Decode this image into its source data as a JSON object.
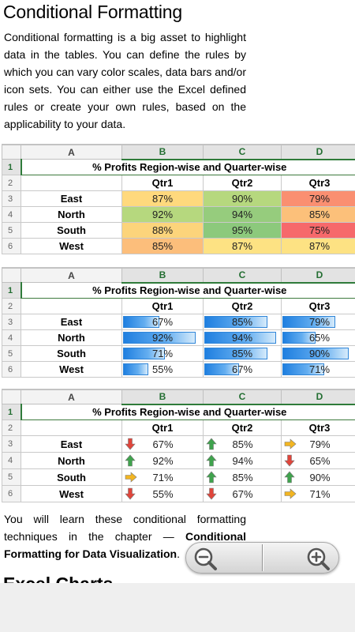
{
  "page": {
    "title": "Conditional Formatting",
    "intro": "Conditional formatting is a big asset to highlight data in the tables. You can define the rules by which you can vary color scales, data bars and/or icon sets. You can either use the Excel defined rules or create your own rules, based on the applicability to your data.",
    "outro_text": "You will learn these conditional formatting techniques in the chapter — ",
    "outro_link": "Conditional Formatting for Data Visualization",
    "outro_end": ".",
    "next_heading": "Excel Charts"
  },
  "sheet": {
    "columns": [
      "A",
      "B",
      "C",
      "D"
    ],
    "row_numbers": [
      "1",
      "2",
      "3",
      "4",
      "5",
      "6"
    ],
    "title": "% Profits Region-wise and Quarter-wise",
    "quarters": [
      "Qtr1",
      "Qtr2",
      "Qtr3"
    ],
    "regions": [
      "East",
      "North",
      "South",
      "West"
    ],
    "values": [
      [
        "87%",
        "90%",
        "79%"
      ],
      [
        "92%",
        "94%",
        "85%"
      ],
      [
        "88%",
        "95%",
        "75%"
      ],
      [
        "85%",
        "87%",
        "87%"
      ]
    ],
    "databar_values": [
      [
        "67%",
        "85%",
        "79%"
      ],
      [
        "92%",
        "94%",
        "65%"
      ],
      [
        "71%",
        "85%",
        "90%"
      ],
      [
        "55%",
        "67%",
        "71%"
      ]
    ],
    "databar_fractions": [
      [
        0.45,
        0.82,
        0.7
      ],
      [
        0.9,
        0.93,
        0.44
      ],
      [
        0.52,
        0.82,
        0.87
      ],
      [
        0.31,
        0.45,
        0.55
      ]
    ],
    "iconset_values": [
      [
        "67%",
        "85%",
        "79%"
      ],
      [
        "92%",
        "94%",
        "65%"
      ],
      [
        "71%",
        "85%",
        "90%"
      ],
      [
        "55%",
        "67%",
        "71%"
      ]
    ],
    "iconset_icons": [
      [
        "arrow-down-icon",
        "arrow-up-icon",
        "arrow-right-icon"
      ],
      [
        "arrow-up-icon",
        "arrow-up-icon",
        "arrow-down-icon"
      ],
      [
        "arrow-right-icon",
        "arrow-up-icon",
        "arrow-up-icon"
      ],
      [
        "arrow-down-icon",
        "arrow-down-icon",
        "arrow-right-icon"
      ]
    ],
    "color_scale_colors": [
      [
        "#ffd97d",
        "#b6d87e",
        "#fa8f71"
      ],
      [
        "#b6d87e",
        "#96cc7d",
        "#fcc07a"
      ],
      [
        "#fcd47b",
        "#8cc97c",
        "#f6696b"
      ],
      [
        "#fcbe7b",
        "#fde283",
        "#fde283"
      ]
    ]
  },
  "icon_colors": {
    "up": "#3fa34d",
    "down": "#e0453b",
    "right": "#f2b522"
  },
  "zoom": {
    "out_icon": "zoom-out-icon",
    "in_icon": "zoom-in-icon"
  }
}
